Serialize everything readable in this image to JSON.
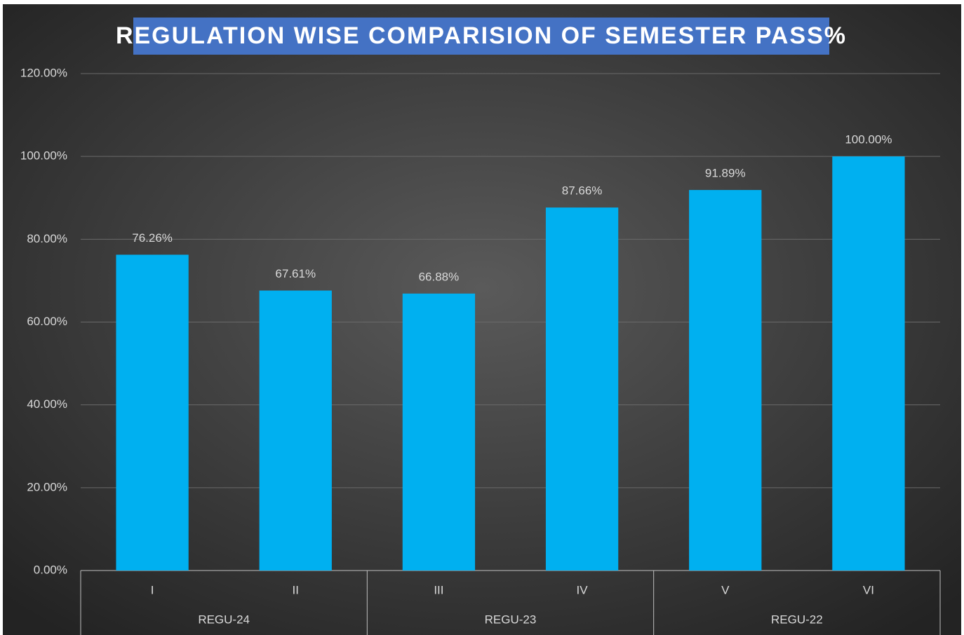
{
  "chart_data": {
    "type": "bar",
    "title": "REGULATION WISE COMPARISION OF SEMESTER PASS%",
    "color": "#00b0f0",
    "groups": [
      {
        "name": "REGU-24",
        "categories": [
          "I",
          "II"
        ],
        "values": [
          76.26,
          67.61
        ],
        "value_labels": [
          "76.26%",
          "67.61%"
        ]
      },
      {
        "name": "REGU-23",
        "categories": [
          "III",
          "IV"
        ],
        "values": [
          66.88,
          87.66
        ],
        "value_labels": [
          "66.88%",
          "87.66%"
        ]
      },
      {
        "name": "REGU-22",
        "categories": [
          "V",
          "VI"
        ],
        "values": [
          91.89,
          100
        ],
        "value_labels": [
          "91.89%",
          "100.00%"
        ]
      }
    ],
    "ylim": [
      0,
      120
    ],
    "yticks": [
      {
        "value": 0,
        "label": "0.00%"
      },
      {
        "value": 20,
        "label": "20.00%"
      },
      {
        "value": 40,
        "label": "40.00%"
      },
      {
        "value": 60,
        "label": "60.00%"
      },
      {
        "value": 80,
        "label": "80.00%"
      },
      {
        "value": 100,
        "label": "100.00%"
      },
      {
        "value": 120,
        "label": "120.00%"
      }
    ],
    "grid": true
  }
}
